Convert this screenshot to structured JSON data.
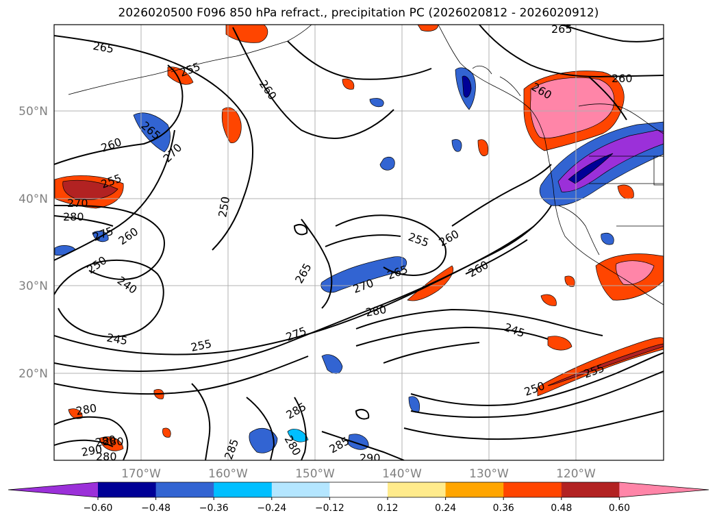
{
  "title": "2026020500 F096 850 hPa refract., precipitation PC (2026020812 - 2026020912)",
  "latitude_labels": [
    "50°N",
    "40°N",
    "30°N",
    "20°N"
  ],
  "longitude_labels": [
    "170°W",
    "160°W",
    "150°W",
    "140°W",
    "130°W",
    "120°W"
  ],
  "colorbar": {
    "colors": [
      "#9b30d9",
      "#000096",
      "#3264d2",
      "#00bfff",
      "#b4e6ff",
      "#ffffff",
      "#ffeb8c",
      "#ffa500",
      "#ff4500",
      "#b22222",
      "#ff85a8"
    ],
    "tick_labels": [
      "−0.60",
      "−0.48",
      "−0.36",
      "−0.24",
      "−0.12",
      "0.12",
      "0.24",
      "0.36",
      "0.48",
      "0.60"
    ]
  },
  "contour_labels": [
    "265",
    "265",
    "260",
    "260",
    "255",
    "255",
    "260",
    "265",
    "270",
    "260",
    "250",
    "270",
    "280",
    "275",
    "260",
    "250",
    "240",
    "245",
    "255",
    "275",
    "280",
    "270",
    "265",
    "255",
    "260",
    "260",
    "265",
    "245",
    "250",
    "255",
    "280",
    "285",
    "280",
    "290",
    "285",
    "280",
    "280",
    "290",
    "285",
    "280"
  ]
}
